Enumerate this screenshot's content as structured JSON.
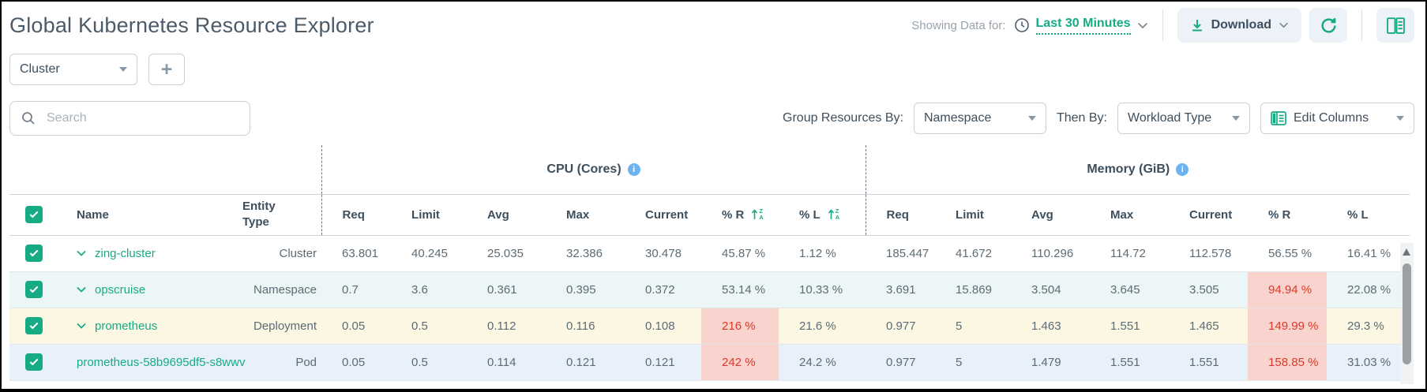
{
  "header": {
    "title": "Global Kubernetes Resource Explorer",
    "showing_label": "Showing Data for:",
    "time_range": "Last 30 Minutes",
    "download_label": "Download"
  },
  "filters": {
    "entity_dropdown_value": "Cluster",
    "add_button_label": "+",
    "search_placeholder": "Search",
    "group_by_label": "Group Resources By:",
    "group_by_value": "Namespace",
    "then_by_label": "Then By:",
    "then_by_value": "Workload Type",
    "edit_columns_label": "Edit Columns"
  },
  "table": {
    "cpu_group_label": "CPU (Cores)",
    "memory_group_label": "Memory (GiB)",
    "name_column": "Name",
    "entity_type_column": "Entity Type",
    "metric_columns": [
      "Req",
      "Limit",
      "Avg",
      "Max",
      "Current",
      "% R",
      "% L"
    ],
    "cpu_sorted_columns": [
      "% R",
      "% L"
    ],
    "rows": [
      {
        "name": "zing-cluster",
        "entity_type": "Cluster",
        "expandable": true,
        "checked": true,
        "bg": "row_white",
        "cpu": [
          "63.801",
          "40.245",
          "25.035",
          "32.386",
          "30.478",
          "45.87 %",
          "1.12 %"
        ],
        "memory": [
          "185.447",
          "41.672",
          "110.296",
          "114.72",
          "112.578",
          "56.55 %",
          "16.41 %"
        ],
        "cpu_alert_cols": [],
        "memory_alert_cols": []
      },
      {
        "name": "opscruise",
        "entity_type": "Namespace",
        "expandable": true,
        "checked": true,
        "bg": "row_teal",
        "cpu": [
          "0.7",
          "3.6",
          "0.361",
          "0.395",
          "0.372",
          "53.14 %",
          "10.33 %"
        ],
        "memory": [
          "3.691",
          "15.869",
          "3.504",
          "3.645",
          "3.505",
          "94.94 %",
          "22.08 %"
        ],
        "cpu_alert_cols": [],
        "memory_alert_cols": [
          5
        ]
      },
      {
        "name": "prometheus",
        "entity_type": "Deployment",
        "expandable": true,
        "checked": true,
        "bg": "row_yellow",
        "cpu": [
          "0.05",
          "0.5",
          "0.112",
          "0.116",
          "0.108",
          "216 %",
          "21.6 %"
        ],
        "memory": [
          "0.977",
          "5",
          "1.463",
          "1.551",
          "1.465",
          "149.99 %",
          "29.3 %"
        ],
        "cpu_alert_cols": [
          5
        ],
        "memory_alert_cols": [
          5
        ]
      },
      {
        "name": "prometheus-58b9695df5-s8wwv",
        "entity_type": "Pod",
        "expandable": false,
        "checked": true,
        "bg": "row_blue",
        "cpu": [
          "0.05",
          "0.5",
          "0.114",
          "0.121",
          "0.121",
          "242 %",
          "24.2 %"
        ],
        "memory": [
          "0.977",
          "5",
          "1.479",
          "1.551",
          "1.551",
          "158.85 %",
          "31.03 %"
        ],
        "cpu_alert_cols": [
          5
        ],
        "memory_alert_cols": [
          5
        ]
      }
    ]
  },
  "colors": {
    "accent_green": "#17ab85",
    "row_white": "#ffffff",
    "row_teal": "#edf6f6",
    "row_yellow": "#fbf7e3",
    "row_blue": "#e8f1fa",
    "alert_bg": "#f9d3cd",
    "alert_text": "#d93a2b",
    "info_blue": "#6cb3f2"
  }
}
